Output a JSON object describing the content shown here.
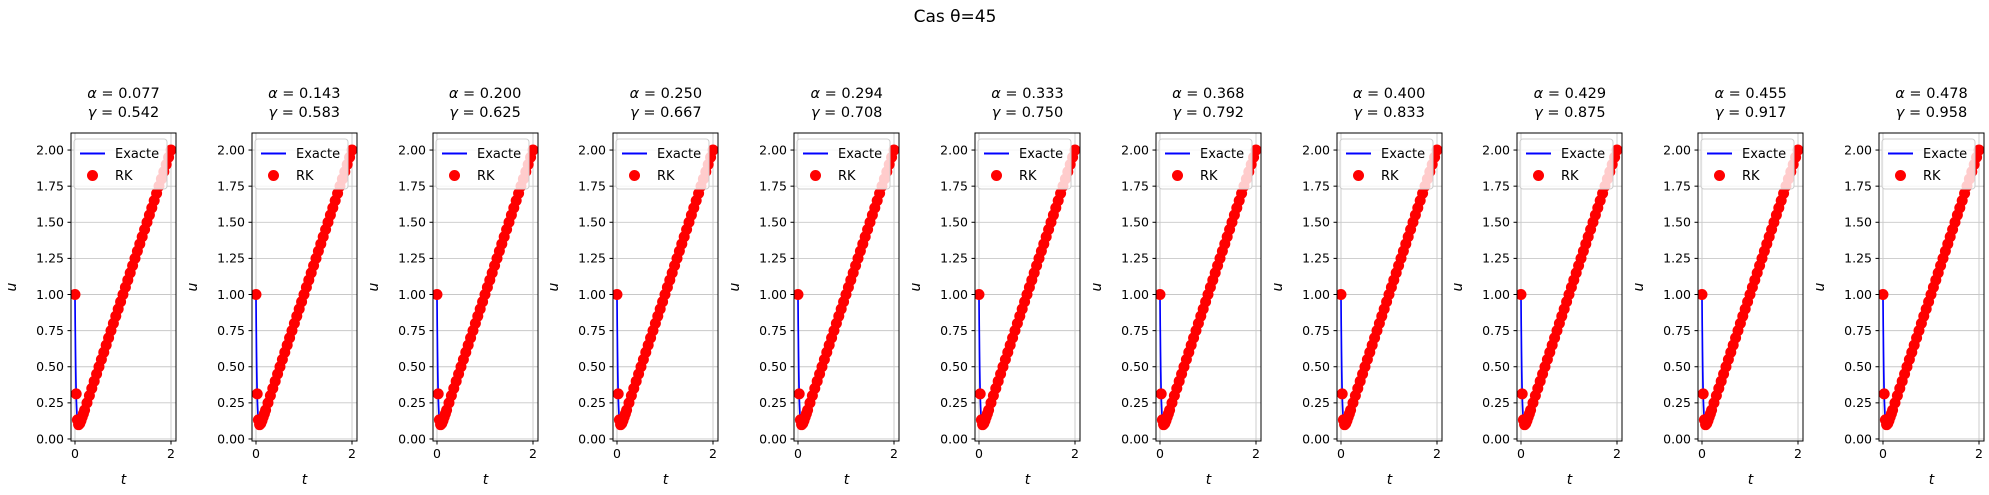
{
  "chart_data": {
    "type": "line",
    "suptitle": "Cas θ=45",
    "xlabel": "t",
    "ylabel": "u",
    "xlim": [
      -0.083,
      2.104
    ],
    "ylim": [
      -0.014,
      2.118
    ],
    "grid": true,
    "xtick_values": [
      0,
      2
    ],
    "xtick_labels": [
      "0",
      "2"
    ],
    "ytick_values": [
      0.0,
      0.25,
      0.5,
      0.75,
      1.0,
      1.25,
      1.5,
      1.75,
      2.0
    ],
    "ytick_labels": [
      "0.00",
      "0.25",
      "0.50",
      "0.75",
      "1.00",
      "1.25",
      "1.50",
      "1.75",
      "2.00"
    ],
    "legend": {
      "position": "upper left",
      "entries": [
        {
          "label": "Exacte",
          "type": "line",
          "color": "#0000ff"
        },
        {
          "label": "RK",
          "type": "marker",
          "color": "#ff0000"
        }
      ]
    },
    "panels": [
      {
        "alpha_title": "α = 0.077",
        "gamma_title": "γ = 0.542"
      },
      {
        "alpha_title": "α = 0.143",
        "gamma_title": "γ = 0.583"
      },
      {
        "alpha_title": "α = 0.200",
        "gamma_title": "γ = 0.625"
      },
      {
        "alpha_title": "α = 0.250",
        "gamma_title": "γ = 0.667"
      },
      {
        "alpha_title": "α = 0.294",
        "gamma_title": "γ = 0.708"
      },
      {
        "alpha_title": "α = 0.333",
        "gamma_title": "γ = 0.750"
      },
      {
        "alpha_title": "α = 0.368",
        "gamma_title": "γ = 0.792"
      },
      {
        "alpha_title": "α = 0.400",
        "gamma_title": "γ = 0.833"
      },
      {
        "alpha_title": "α = 0.429",
        "gamma_title": "γ = 0.875"
      },
      {
        "alpha_title": "α = 0.455",
        "gamma_title": "γ = 0.917"
      },
      {
        "alpha_title": "α = 0.478",
        "gamma_title": "γ = 0.958"
      }
    ],
    "note": "All 11 panels display the same two series",
    "series": [
      {
        "name": "Exacte",
        "type": "line",
        "color": "#0000ff",
        "line_width": 1.7,
        "points": [
          [
            0,
            1.0
          ],
          [
            0.005,
            0.784
          ],
          [
            0.01,
            0.617
          ],
          [
            0.015,
            0.487
          ],
          [
            0.02,
            0.388
          ],
          [
            0.025,
            0.312
          ],
          [
            0.03,
            0.253
          ],
          [
            0.04,
            0.175
          ],
          [
            0.05,
            0.132
          ],
          [
            0.06,
            0.11
          ],
          [
            0.07,
            0.1
          ],
          [
            0.08,
            0.098
          ],
          [
            0.09,
            0.101
          ],
          [
            0.1,
            0.107
          ],
          [
            0.125,
            0.127
          ],
          [
            0.15,
            0.151
          ],
          [
            0.175,
            0.175
          ],
          [
            0.2,
            0.2
          ],
          [
            0.3,
            0.3
          ],
          [
            0.5,
            0.5
          ],
          [
            0.75,
            0.75
          ],
          [
            1.0,
            1.0
          ],
          [
            1.25,
            1.25
          ],
          [
            1.5,
            1.5
          ],
          [
            1.75,
            1.75
          ],
          [
            2.0,
            2.0
          ]
        ]
      },
      {
        "name": "RK",
        "type": "scatter",
        "color": "#ff0000",
        "marker_radius": 5.5,
        "points": [
          [
            0,
            1.0
          ],
          [
            0.025,
            0.312
          ],
          [
            0.05,
            0.132
          ],
          [
            0.075,
            0.099
          ],
          [
            0.1,
            0.107
          ],
          [
            0.125,
            0.127
          ],
          [
            0.15,
            0.151
          ],
          [
            0.175,
            0.175
          ],
          [
            0.2,
            0.2
          ],
          [
            0.25,
            0.25
          ],
          [
            0.3,
            0.3
          ],
          [
            0.35,
            0.35
          ],
          [
            0.4,
            0.4
          ],
          [
            0.45,
            0.45
          ],
          [
            0.5,
            0.5
          ],
          [
            0.55,
            0.55
          ],
          [
            0.6,
            0.6
          ],
          [
            0.65,
            0.65
          ],
          [
            0.7,
            0.7
          ],
          [
            0.75,
            0.75
          ],
          [
            0.8,
            0.8
          ],
          [
            0.85,
            0.85
          ],
          [
            0.9,
            0.9
          ],
          [
            0.95,
            0.95
          ],
          [
            1.0,
            1.0
          ],
          [
            1.05,
            1.05
          ],
          [
            1.1,
            1.1
          ],
          [
            1.15,
            1.15
          ],
          [
            1.2,
            1.2
          ],
          [
            1.25,
            1.25
          ],
          [
            1.3,
            1.3
          ],
          [
            1.35,
            1.35
          ],
          [
            1.4,
            1.4
          ],
          [
            1.45,
            1.45
          ],
          [
            1.5,
            1.5
          ],
          [
            1.55,
            1.55
          ],
          [
            1.6,
            1.6
          ],
          [
            1.65,
            1.65
          ],
          [
            1.7,
            1.7
          ],
          [
            1.75,
            1.75
          ],
          [
            1.8,
            1.8
          ],
          [
            1.85,
            1.85
          ],
          [
            1.9,
            1.9
          ],
          [
            1.95,
            1.95
          ],
          [
            2.0,
            2.0
          ]
        ]
      }
    ],
    "colors": {
      "grid": "#c8c8c8",
      "spine": "#000000",
      "legend_border": "#cccccc"
    }
  }
}
